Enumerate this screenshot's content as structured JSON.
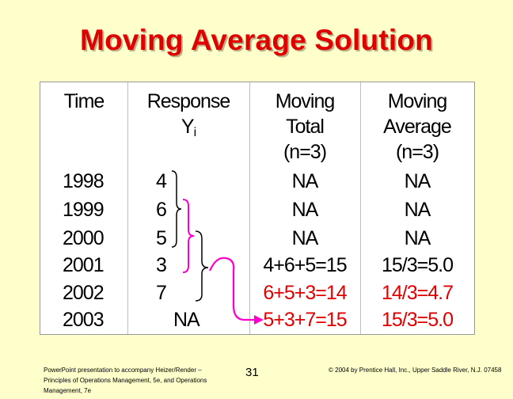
{
  "slide": {
    "title": "Moving Average Solution",
    "page_number": "31",
    "footer_left": "PowerPoint presentation to accompany Heizer/Render – Principles of Operations Management, 5e, and Operations Management, 7e",
    "footer_right": "© 2004 by Prentice Hall, Inc., Upper Saddle River, N.J. 07458"
  },
  "table": {
    "headers": {
      "time": "Time",
      "response": "Response",
      "response_sym": "Y",
      "response_sub": "i",
      "moving_total": [
        "Moving",
        "Total",
        "(n=3)"
      ],
      "moving_average": [
        "Moving",
        "Average",
        "(n=3)"
      ]
    },
    "rows": [
      {
        "time": "1998",
        "response": "4",
        "total": "NA",
        "average": "NA"
      },
      {
        "time": "1999",
        "response": "6",
        "total": "NA",
        "average": "NA"
      },
      {
        "time": "2000",
        "response": "5",
        "total": "NA",
        "average": "NA"
      },
      {
        "time": "2001",
        "response": "3",
        "total": "4+6+5=15",
        "average": "15/3=5.0"
      },
      {
        "time": "2002",
        "response": "7",
        "total": "6+5+3=14",
        "average": "14/3=4.7"
      },
      {
        "time": "2003",
        "response": "NA",
        "total": "5+3+7=15",
        "average": "15/3=5.0"
      }
    ]
  },
  "colors": {
    "title": "#e00000",
    "highlight_text": "#e00000",
    "bracket": "#ff00cc",
    "arrow": "#ff00cc",
    "background": "#ffffcc"
  }
}
